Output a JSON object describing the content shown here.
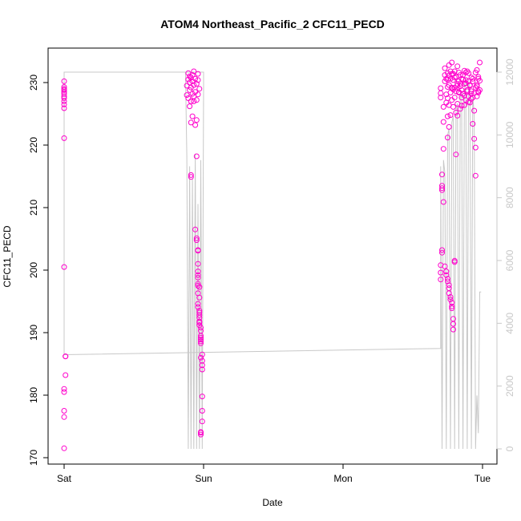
{
  "chart_data": {
    "type": "scatter",
    "title": "ATOM4 Northeast_Pacific_2 CFC11_PECD",
    "xlabel": "Date",
    "ylabel": "CFC11_PECD",
    "x_ticks": [
      "Sat",
      "Sun",
      "Mon",
      "Tue"
    ],
    "x_range_days": [
      0,
      3.07
    ],
    "ylim": [
      170,
      235
    ],
    "y_ticks": [
      170,
      180,
      190,
      200,
      210,
      220,
      230
    ],
    "y2_ticks": [
      0,
      2000,
      4000,
      6000,
      8000,
      10000,
      12000
    ],
    "y2lim": [
      -300,
      12400
    ],
    "grid": false,
    "colors": {
      "points": "#ff00cc",
      "secondary_line": "#c8c8c8",
      "axis": "#000000",
      "right_axis": "#c8c8c8"
    },
    "series": [
      {
        "marker": "open-circle",
        "x": [
          0.0,
          0.0,
          0.0,
          0.0,
          0.0,
          0.01,
          0.01,
          0.01,
          0.0,
          0.0,
          0.0,
          0.0,
          0.0,
          0.0,
          0.0,
          0.0,
          0.0,
          0.0,
          0.0,
          0.0,
          0.0,
          0.88,
          0.88,
          0.89,
          0.89,
          0.89,
          0.9,
          0.9,
          0.9,
          0.91,
          0.91,
          0.91,
          0.92,
          0.92,
          0.92,
          0.93,
          0.93,
          0.93,
          0.94,
          0.94,
          0.95,
          0.95,
          0.96,
          0.96,
          0.96,
          0.97,
          0.9,
          0.93,
          0.91,
          0.92,
          0.94,
          0.95,
          0.91,
          0.91,
          0.95,
          0.94,
          0.95,
          0.95,
          0.96,
          0.96,
          0.96,
          0.96,
          0.96,
          0.96,
          0.96,
          0.96,
          0.96,
          0.97,
          0.97,
          0.97,
          0.97,
          0.97,
          0.98,
          0.98,
          0.98,
          0.98,
          0.98,
          0.99,
          0.99,
          0.99,
          0.99,
          0.99,
          0.99,
          0.99,
          0.98,
          0.98,
          0.98,
          0.98,
          0.96,
          0.97,
          0.97,
          0.96,
          0.97,
          0.97,
          0.98,
          0.98,
          2.7,
          2.7,
          2.7,
          2.71,
          2.71,
          2.71,
          2.71,
          2.71,
          2.71,
          2.72,
          2.72,
          2.72,
          2.7,
          2.7,
          2.7,
          2.73,
          2.73,
          2.73,
          2.74,
          2.74,
          2.74,
          2.75,
          2.75,
          2.75,
          2.75,
          2.75,
          2.76,
          2.76,
          2.76,
          2.76,
          2.76,
          2.77,
          2.77,
          2.77,
          2.78,
          2.78,
          2.78,
          2.78,
          2.79,
          2.79,
          2.79,
          2.8,
          2.8,
          2.8,
          2.81,
          2.81,
          2.81,
          2.82,
          2.82,
          2.82,
          2.83,
          2.83,
          2.83,
          2.84,
          2.84,
          2.85,
          2.85,
          2.86,
          2.86,
          2.87,
          2.87,
          2.88,
          2.88,
          2.89,
          2.89,
          2.9,
          2.9,
          2.91,
          2.91,
          2.92,
          2.92,
          2.93,
          2.93,
          2.94,
          2.94,
          2.95,
          2.95,
          2.96,
          2.96,
          2.97,
          2.97,
          2.98,
          2.98,
          2.72,
          2.73,
          2.74,
          2.74,
          2.75,
          2.75,
          2.76,
          2.76,
          2.76,
          2.77,
          2.77,
          2.78,
          2.78,
          2.78,
          2.79,
          2.79,
          2.79,
          2.8,
          2.8,
          2.81,
          2.82,
          2.83,
          2.84,
          2.85,
          2.86,
          2.87,
          2.88,
          2.89,
          2.9,
          2.91,
          2.92,
          2.93,
          2.94,
          2.95,
          2.96,
          2.97,
          2.75,
          2.77,
          2.78,
          2.79,
          2.8,
          2.82,
          2.84,
          2.85,
          2.87,
          2.88,
          2.9,
          2.92,
          2.93,
          2.95,
          2.96,
          2.97,
          2.98
        ],
        "y": [
          171.5,
          176.5,
          177.5,
          180.5,
          181,
          183.2,
          186.2,
          186.2,
          200.5,
          221.1,
          225.9,
          227,
          227.8,
          228.2,
          228.5,
          229,
          229.3,
          230.2,
          226.5,
          227.5,
          228.8,
          228,
          229.5,
          230.5,
          231.5,
          227.5,
          228.8,
          230,
          231,
          227,
          229.2,
          230.8,
          228.2,
          230.2,
          231.2,
          227.8,
          229.6,
          231.8,
          228.5,
          230.6,
          227.2,
          229.8,
          228.1,
          230.4,
          231.4,
          229,
          226.2,
          227,
          223.6,
          224.6,
          223.2,
          224,
          215.2,
          214.9,
          218.2,
          206.5,
          205.1,
          204.8,
          203.2,
          203.1,
          201,
          199.8,
          199.2,
          198.8,
          197.5,
          196.3,
          194.6,
          193.5,
          193.2,
          192.4,
          191.6,
          191.2,
          190.8,
          190.3,
          189.5,
          188.9,
          188.6,
          186.5,
          185.5,
          184.8,
          184.1,
          179.8,
          177.5,
          175.8,
          174.1,
          173.7,
          174,
          188.3,
          197.8,
          197.3,
          195.6,
          194.1,
          192.8,
          191.8,
          189.2,
          186,
          198.5,
          199.6,
          200.8,
          203.2,
          202.8,
          212.8,
          213.5,
          213.1,
          215.3,
          219.4,
          223.7,
          226.1,
          227.6,
          228.3,
          229.1,
          230.2,
          231.2,
          232.3,
          226.8,
          228.1,
          230.6,
          221.2,
          224.6,
          227.5,
          229.3,
          231.5,
          222.9,
          226.4,
          229.6,
          231.1,
          232.8,
          224.8,
          228.4,
          230.6,
          227.2,
          229.1,
          231.4,
          233.2,
          226.1,
          228.9,
          230.4,
          227.6,
          229.2,
          231.8,
          225.2,
          228.6,
          230.9,
          226.6,
          229.8,
          232.6,
          228.4,
          230.2,
          231.6,
          225.8,
          229.4,
          227.6,
          230.6,
          228.2,
          231.2,
          226.4,
          229.8,
          227.2,
          230.4,
          228.6,
          231.8,
          227.8,
          230.2,
          226.8,
          229.6,
          228.2,
          230.8,
          223.4,
          227.6,
          221,
          225.5,
          215.1,
          219.6,
          229.6,
          232,
          228.4,
          230.6,
          228.8,
          230.3,
          210.9,
          200.6,
          199.8,
          199.2,
          198.6,
          198.2,
          197.6,
          197.1,
          196.3,
          195.7,
          195.3,
          194.8,
          194.2,
          193.9,
          192.2,
          191.4,
          190.5,
          201.3,
          201.5,
          218.5,
          224.7,
          228.5,
          229.8,
          226.3,
          230.5,
          227.9,
          231.6,
          228.8,
          226.9,
          229.5,
          227.4,
          230.6,
          228.3,
          229.2,
          227.8,
          228.6,
          230.5,
          231.8,
          229.2,
          231.4,
          230.8,
          229.5,
          231.2,
          228.8,
          231.9,
          229.9,
          231.5,
          228.6,
          230.2,
          231.6,
          229.4,
          230.9,
          233.2
        ]
      }
    ],
    "secondary_series": {
      "axis": "right",
      "x": [
        0.0,
        0.0,
        0.87,
        0.88,
        0.89,
        0.9,
        0.91,
        0.92,
        0.93,
        0.94,
        0.95,
        0.96,
        0.97,
        0.98,
        0.99,
        1.0,
        1.0,
        0.99,
        0.0,
        0.0,
        2.7,
        2.7,
        2.71,
        2.72,
        2.73,
        2.74,
        2.75,
        2.76,
        2.77,
        2.78,
        2.79,
        2.8,
        2.81,
        2.82,
        2.83,
        2.84,
        2.85,
        2.86,
        2.87,
        2.88,
        2.89,
        2.9,
        2.91,
        2.92,
        2.93,
        2.94,
        2.95,
        2.96,
        2.97,
        2.98,
        2.99
      ],
      "values": [
        3000,
        12000,
        12000,
        9300,
        0,
        9000,
        0,
        8600,
        0,
        9400,
        0,
        7800,
        0,
        9200,
        0,
        11600,
        12000,
        12000,
        12000,
        3000,
        3200,
        9000,
        0,
        9200,
        8800,
        0,
        10000,
        10200,
        0,
        10400,
        10600,
        0,
        10800,
        11000,
        0,
        11200,
        11400,
        0,
        11600,
        11800,
        0,
        11700,
        11500,
        0,
        11300,
        10600,
        0,
        1700,
        500,
        5000,
        5000
      ]
    }
  }
}
